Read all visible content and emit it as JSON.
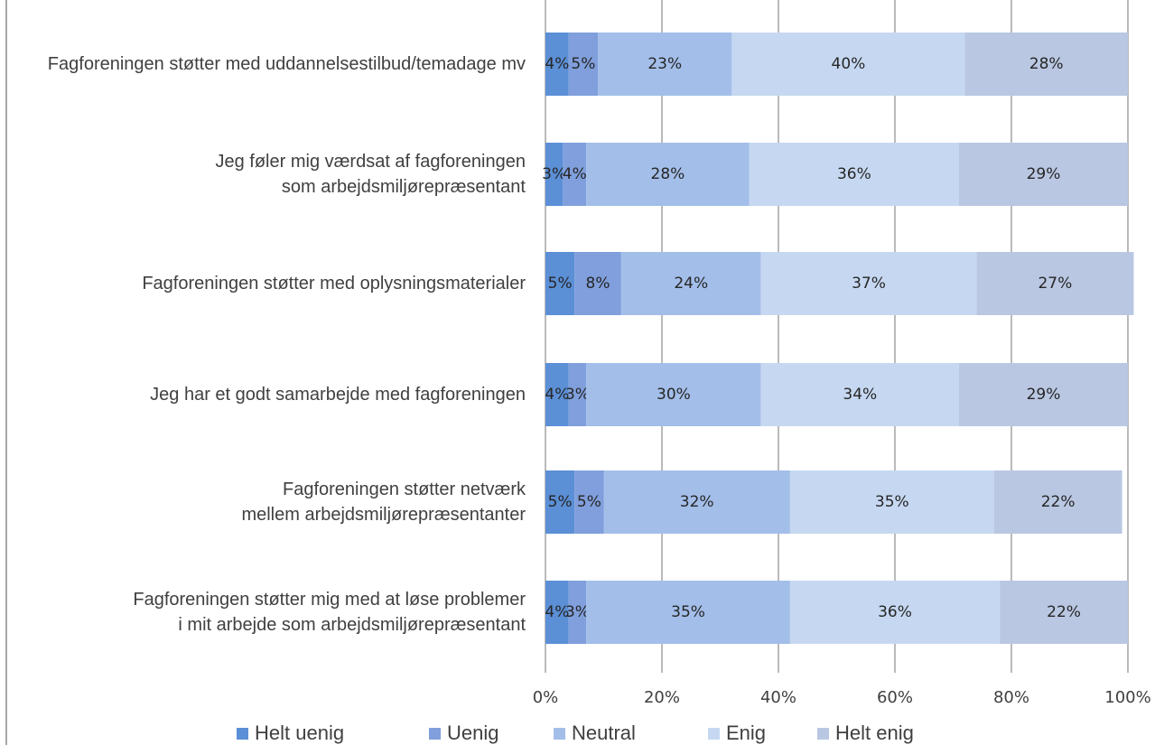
{
  "chart_data": {
    "type": "stacked_barh",
    "categories": [
      "Fagforeningen støtter med uddannelsestilbud/temadage mv",
      "Jeg føler mig værdsat af fagforeningen som arbejdsmiljørepræsentant",
      "Fagforeningen støtter med oplysningsmaterialer",
      "Jeg har et godt samarbejde med fagforeningen",
      "Fagforeningen støtter netværk mellem arbejdsmiljørepræsentanter",
      "Fagforeningen støtter mig med at løse problemer i mit arbejde som arbejdsmiljørepræsentant"
    ],
    "series": [
      {
        "name": "Helt uenig",
        "color": "#5b8fd6",
        "values": [
          4,
          3,
          5,
          4,
          5,
          4
        ],
        "value_labels": [
          "4%",
          "3%",
          "5%",
          "4%",
          "5%",
          "4%"
        ]
      },
      {
        "name": "Uenig",
        "color": "#809fdc",
        "values": [
          5,
          4,
          8,
          3,
          5,
          3
        ],
        "value_labels": [
          "5%",
          "4%",
          "8%",
          "3%",
          "5%",
          "3%"
        ]
      },
      {
        "name": "Neutral",
        "color": "#a3bee9",
        "values": [
          23,
          28,
          24,
          30,
          32,
          35
        ],
        "value_labels": [
          "23%",
          "28%",
          "24%",
          "30%",
          "32%",
          "35%"
        ]
      },
      {
        "name": "Enig",
        "color": "#c6d8f1",
        "values": [
          40,
          36,
          37,
          34,
          35,
          36
        ],
        "value_labels": [
          "40%",
          "36%",
          "37%",
          "34%",
          "35%",
          "36%"
        ]
      },
      {
        "name": "Helt enig",
        "color": "#b9c7e2",
        "values": [
          28,
          29,
          27,
          29,
          22,
          22
        ],
        "value_labels": [
          "28%",
          "29%",
          "27%",
          "29%",
          "22%",
          "22%"
        ]
      }
    ],
    "xlim": [
      0,
      100
    ],
    "xticks": [
      {
        "value": 0,
        "label": "0%"
      },
      {
        "value": 20,
        "label": "20%"
      },
      {
        "value": 40,
        "label": "40%"
      },
      {
        "value": 60,
        "label": "60%"
      },
      {
        "value": 80,
        "label": "80%"
      },
      {
        "value": 100,
        "label": "100%"
      }
    ],
    "grid": true,
    "legend": "bottom"
  }
}
